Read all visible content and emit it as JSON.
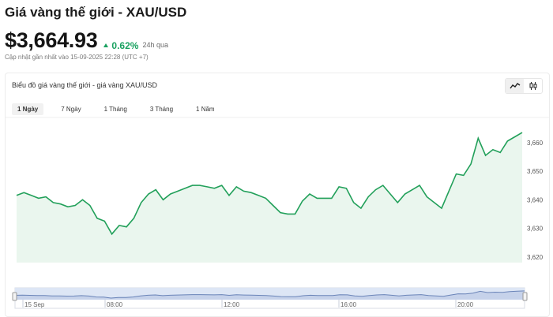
{
  "header": {
    "title": "Giá vàng thế giới - XAU/USD",
    "price": "$3,664.93",
    "change_pct": "0.62%",
    "change_period": "24h qua",
    "updated": "Cập nhật gần nhất vào 15-09-2025 22:28 (UTC +7)"
  },
  "chart_card": {
    "title": "Biểu đồ giá vàng thế giới - giá vàng XAU/USD",
    "mode_icons": [
      "line-chart-icon",
      "candlestick-icon"
    ],
    "tabs": [
      {
        "label": "1 Ngày",
        "active": true
      },
      {
        "label": "7 Ngày",
        "active": false
      },
      {
        "label": "1 Tháng",
        "active": false
      },
      {
        "label": "3 Tháng",
        "active": false
      },
      {
        "label": "1 Năm",
        "active": false
      }
    ]
  },
  "colors": {
    "line": "#22a05a",
    "fill": "#eaf6ee",
    "positive": "#1aa160",
    "navigator_fill": "#dde6f5"
  },
  "chart_data": {
    "type": "area",
    "y_ticks": [
      "3,620",
      "3,630",
      "3,640",
      "3,650",
      "3,660"
    ],
    "ylim": [
      3618,
      3666
    ],
    "values": [
      3641.5,
      3642.5,
      3641.5,
      3640.5,
      3641,
      3639,
      3638.5,
      3637.5,
      3638,
      3640,
      3638,
      3633.5,
      3632.5,
      3628,
      3631,
      3630.5,
      3633.5,
      3639,
      3642,
      3643.5,
      3640,
      3642,
      3643,
      3644,
      3645,
      3645,
      3644.5,
      3644,
      3645,
      3641.5,
      3644.5,
      3643,
      3642.5,
      3641.5,
      3640.5,
      3638,
      3635.5,
      3635,
      3635,
      3639.5,
      3642,
      3640.5,
      3640.5,
      3640.5,
      3644.5,
      3644,
      3639,
      3637,
      3641,
      3643.5,
      3645,
      3642,
      3639,
      3642,
      3643.5,
      3645,
      3641,
      3639,
      3637,
      3643,
      3649,
      3648.5,
      3652.5,
      3661.5,
      3655.5,
      3657.5,
      3656.5,
      3660.5,
      3662,
      3663.5
    ],
    "navigator": {
      "labels": [
        "15 Sep",
        "08:00",
        "12:00",
        "16:00",
        "20:00"
      ]
    }
  }
}
